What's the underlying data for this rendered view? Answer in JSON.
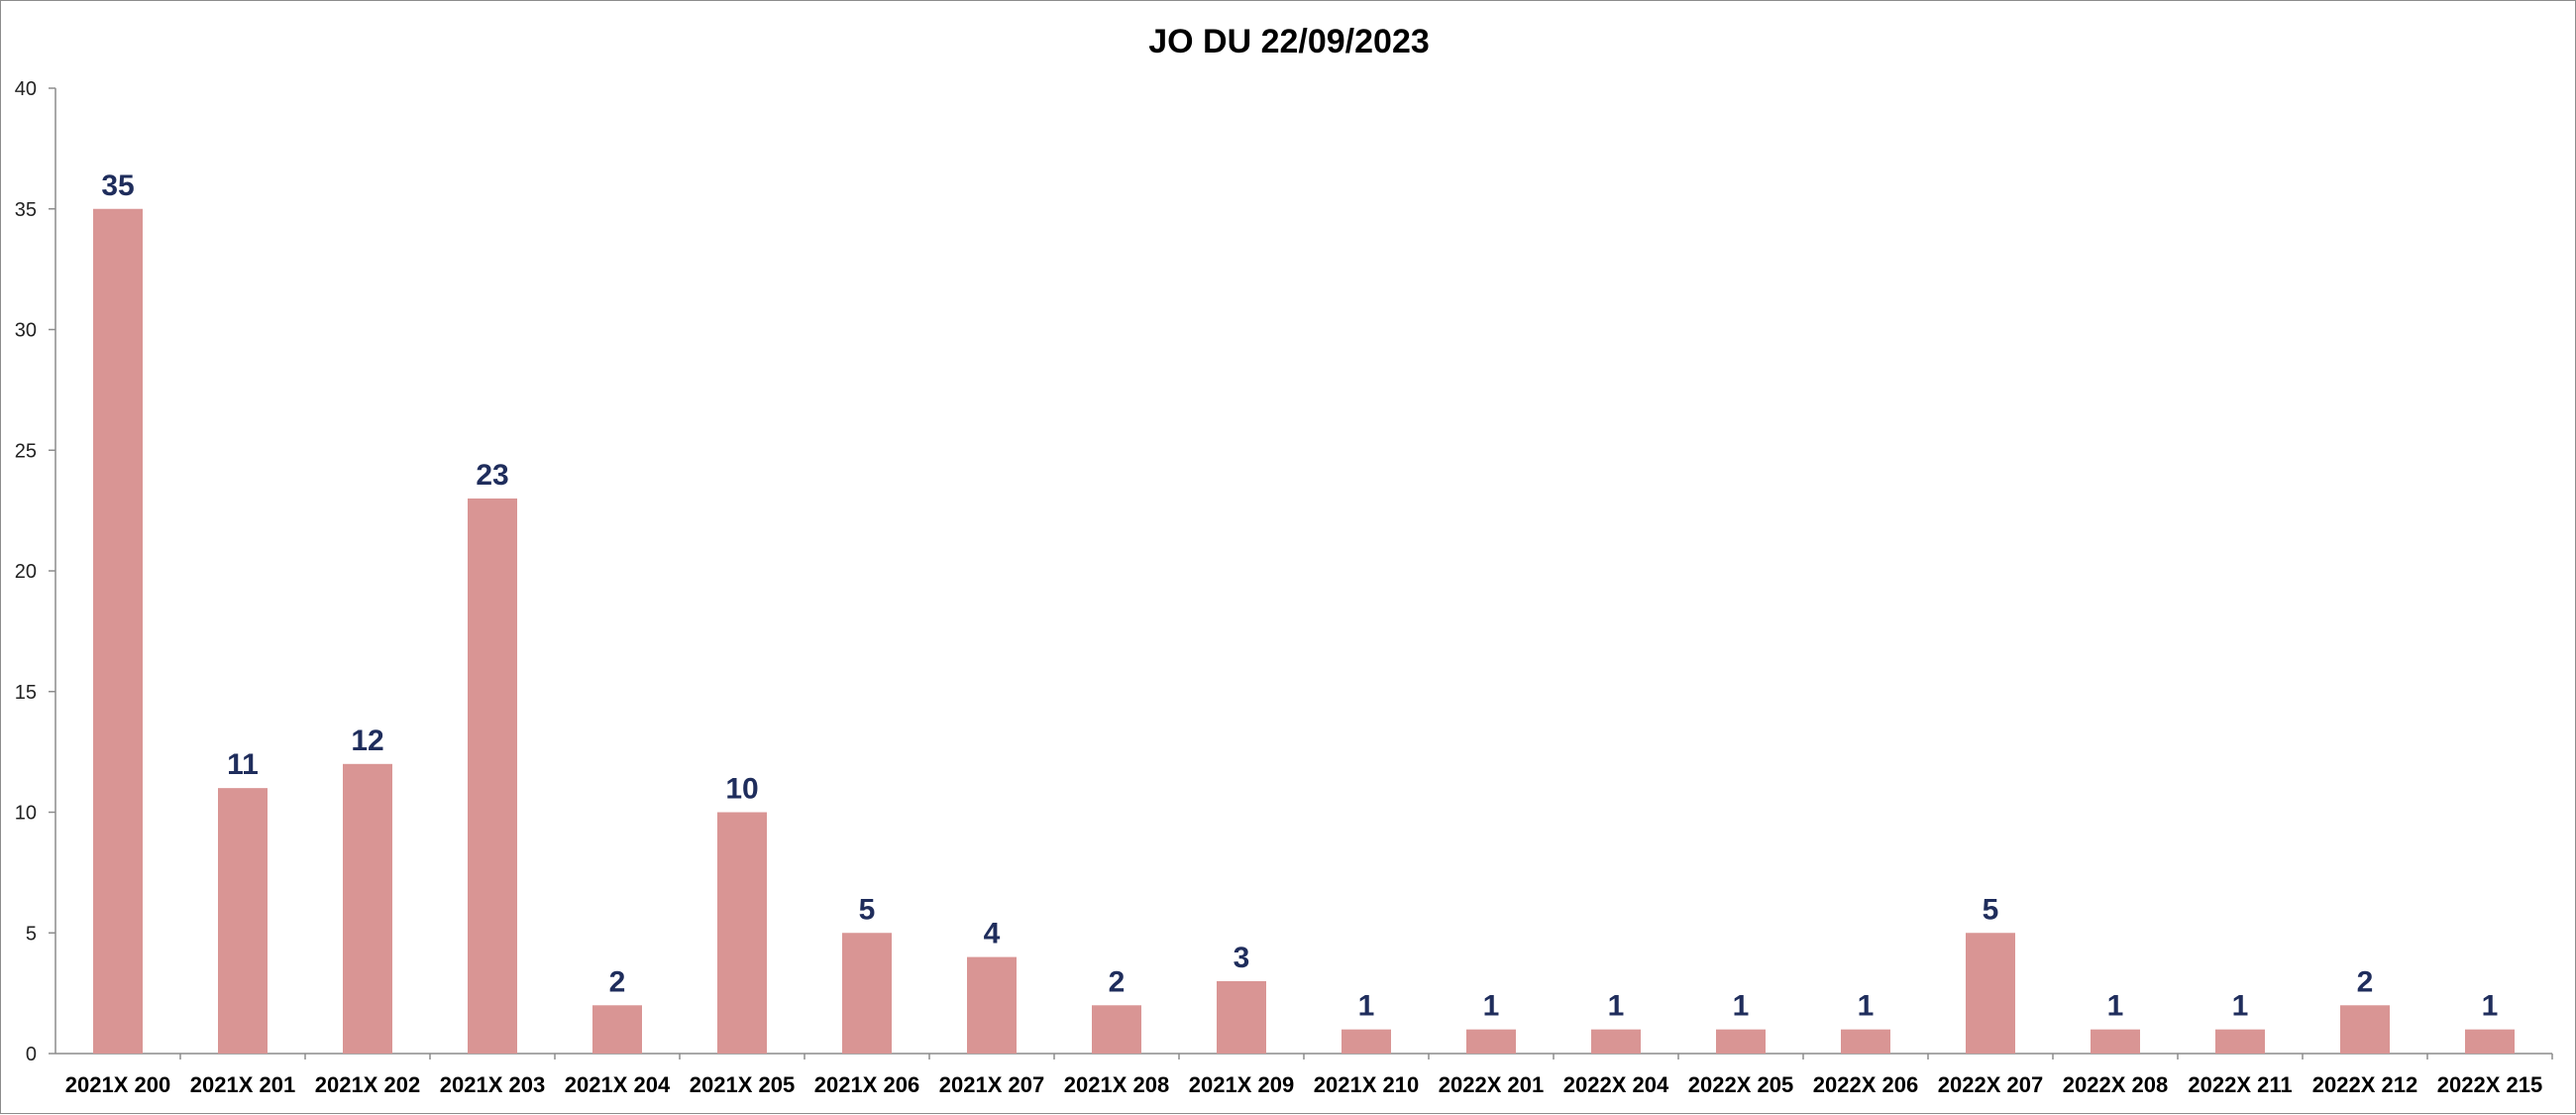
{
  "chart_data": {
    "type": "bar",
    "title": "JO DU 22/09/2023",
    "xlabel": "",
    "ylabel": "",
    "categories": [
      "2021X 200",
      "2021X 201",
      "2021X 202",
      "2021X 203",
      "2021X 204",
      "2021X 205",
      "2021X 206",
      "2021X 207",
      "2021X 208",
      "2021X 209",
      "2021X 210",
      "2022X 201",
      "2022X 204",
      "2022X 205",
      "2022X 206",
      "2022X 207",
      "2022X 208",
      "2022X 211",
      "2022X 212",
      "2022X 215"
    ],
    "values": [
      35,
      11,
      12,
      23,
      2,
      10,
      5,
      4,
      2,
      3,
      1,
      1,
      1,
      1,
      1,
      5,
      1,
      1,
      2,
      1
    ],
    "ylim": [
      0,
      40
    ],
    "yticks": [
      0,
      5,
      10,
      15,
      20,
      25,
      30,
      35,
      40
    ],
    "grid": false,
    "legend": "none",
    "data_labels": true,
    "colors": {
      "bar": "#d99594",
      "data_label": "#1f2d5c",
      "axis": "#8c8c8c"
    }
  }
}
